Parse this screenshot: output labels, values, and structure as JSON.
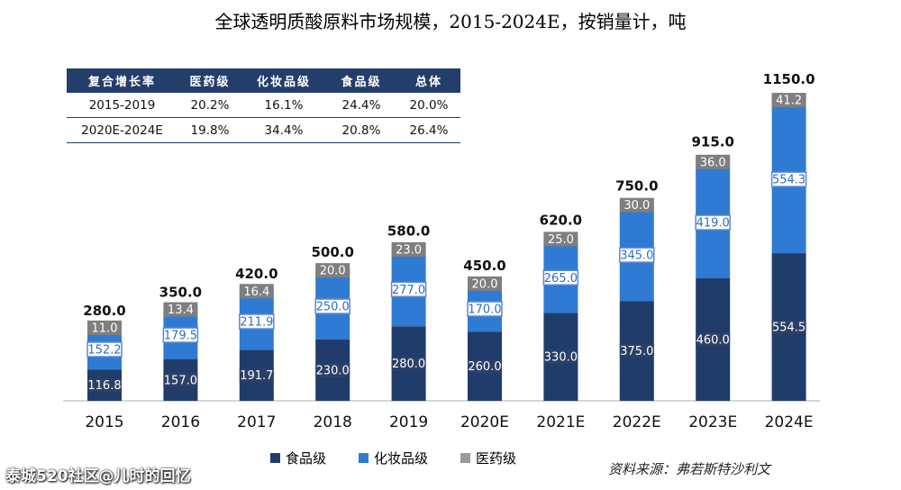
{
  "title": "全球透明质酸原料市场规模，2015-2024E，按销量计，吨",
  "cagr_table": {
    "headers": [
      "复合增长率",
      "医药级",
      "化妆品级",
      "食品级",
      "总体"
    ],
    "rows": [
      [
        "2015-2019",
        "20.2%",
        "16.1%",
        "24.4%",
        "20.0%"
      ],
      [
        "2020E-2024E",
        "19.8%",
        "34.4%",
        "20.8%",
        "26.4%"
      ]
    ]
  },
  "colors": {
    "food": "#1f3c6b",
    "cosmetic": "#2f7bd3",
    "pharma": "#9a9a9a"
  },
  "chart_data": {
    "type": "bar",
    "stacked": true,
    "categories": [
      "2015",
      "2016",
      "2017",
      "2018",
      "2019",
      "2020E",
      "2021E",
      "2022E",
      "2023E",
      "2024E"
    ],
    "series": [
      {
        "name": "食品级",
        "values": [
          116.8,
          157.0,
          191.7,
          230.0,
          280.0,
          260.0,
          330.0,
          375.0,
          460.0,
          554.5
        ],
        "labels": [
          "116.8",
          "157.0",
          "191.7",
          "230.0",
          "280.0",
          "260.0",
          "330.0",
          "375.0",
          "460.0",
          "554.5"
        ]
      },
      {
        "name": "化妆品级",
        "values": [
          152.2,
          179.5,
          211.9,
          250.0,
          277.0,
          170.0,
          265.0,
          345.0,
          419.0,
          554.3
        ],
        "labels": [
          "152.2",
          "179.5",
          "211.9",
          "250.0",
          "277.0",
          "170.0",
          "265.0",
          "345.0",
          "419.0",
          "554.3"
        ]
      },
      {
        "name": "医药级",
        "values": [
          11.0,
          13.4,
          16.4,
          20.0,
          23.0,
          20.0,
          25.0,
          30.0,
          36.0,
          41.2
        ],
        "labels": [
          "11.0",
          "13.4",
          "16.4",
          "20.0",
          "23.0",
          "20.0",
          "25.0",
          "30.0",
          "36.0",
          "41.2"
        ]
      }
    ],
    "totals": [
      280.0,
      350.0,
      420.0,
      500.0,
      580.0,
      450.0,
      620.0,
      750.0,
      915.0,
      1150.0
    ],
    "total_labels": [
      "280.0",
      "350.0",
      "420.0",
      "500.0",
      "580.0",
      "450.0",
      "620.0",
      "750.0",
      "915.0",
      "1150.0"
    ],
    "ylim": [
      0,
      1150
    ],
    "legend_position": "bottom",
    "grid": false
  },
  "legend": [
    {
      "key": "food",
      "label": "食品级"
    },
    {
      "key": "cosmetic",
      "label": "化妆品级"
    },
    {
      "key": "pharma",
      "label": "医药级"
    }
  ],
  "source": "资料来源：弗若斯特沙利文",
  "watermark": "泰城520社区@儿时的回忆"
}
